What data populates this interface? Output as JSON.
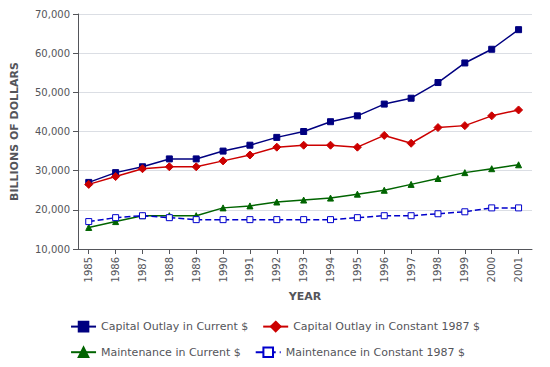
{
  "chart_data": {
    "type": "line",
    "xlabel": "YEAR",
    "ylabel": "BILLIONS OF DOLLARS",
    "x": [
      1985,
      1986,
      1987,
      1988,
      1989,
      1990,
      1991,
      1992,
      1993,
      1994,
      1995,
      1996,
      1997,
      1998,
      1999,
      2000,
      2001
    ],
    "series": [
      {
        "name": "Capital Outlay in Current $",
        "color": "#000080",
        "marker": "square",
        "line_style": "solid",
        "values": [
          27000,
          29500,
          31000,
          33000,
          33000,
          35000,
          36500,
          38500,
          40000,
          42500,
          44000,
          47000,
          48500,
          52500,
          57500,
          61000,
          66000
        ]
      },
      {
        "name": "Capital Outlay in Constant 1987 $",
        "color": "#CC0000",
        "marker": "diamond",
        "line_style": "solid",
        "values": [
          26500,
          28500,
          30500,
          31000,
          31000,
          32500,
          34000,
          36000,
          36500,
          36500,
          36000,
          39000,
          37000,
          41000,
          41500,
          44000,
          45500
        ]
      },
      {
        "name": "Maintenance in Current $",
        "color": "#006400",
        "marker": "triangle",
        "line_style": "solid",
        "values": [
          15500,
          17000,
          18500,
          18500,
          18500,
          20500,
          21000,
          22000,
          22500,
          23000,
          24000,
          25000,
          26500,
          28000,
          29500,
          30500,
          31500
        ]
      },
      {
        "name": "Maintenance in Constant 1987 $",
        "color": "#0000CC",
        "marker": "open-square",
        "line_style": "dashed",
        "values": [
          17000,
          18000,
          18500,
          18000,
          17500,
          17500,
          17500,
          17500,
          17500,
          17500,
          18000,
          18500,
          18500,
          19000,
          19500,
          20500,
          20500
        ]
      }
    ],
    "xlim": [
      1984.6,
      2001.5
    ],
    "xticks": [
      1985,
      1986,
      1987,
      1988,
      1989,
      1990,
      1991,
      1992,
      1993,
      1994,
      1995,
      1996,
      1997,
      1998,
      1999,
      2000,
      2001
    ],
    "ylim": [
      10000,
      70000
    ],
    "yticks": [
      {
        "value": 10000,
        "label": "10,000"
      },
      {
        "value": 20000,
        "label": "20,000"
      },
      {
        "value": 30000,
        "label": "30,000"
      },
      {
        "value": 40000,
        "label": "40,000"
      },
      {
        "value": 50000,
        "label": "50,000"
      },
      {
        "value": 60000,
        "label": "60,000"
      },
      {
        "value": 70000,
        "label": "70,000"
      }
    ],
    "grid": true,
    "legend": "bottom"
  }
}
